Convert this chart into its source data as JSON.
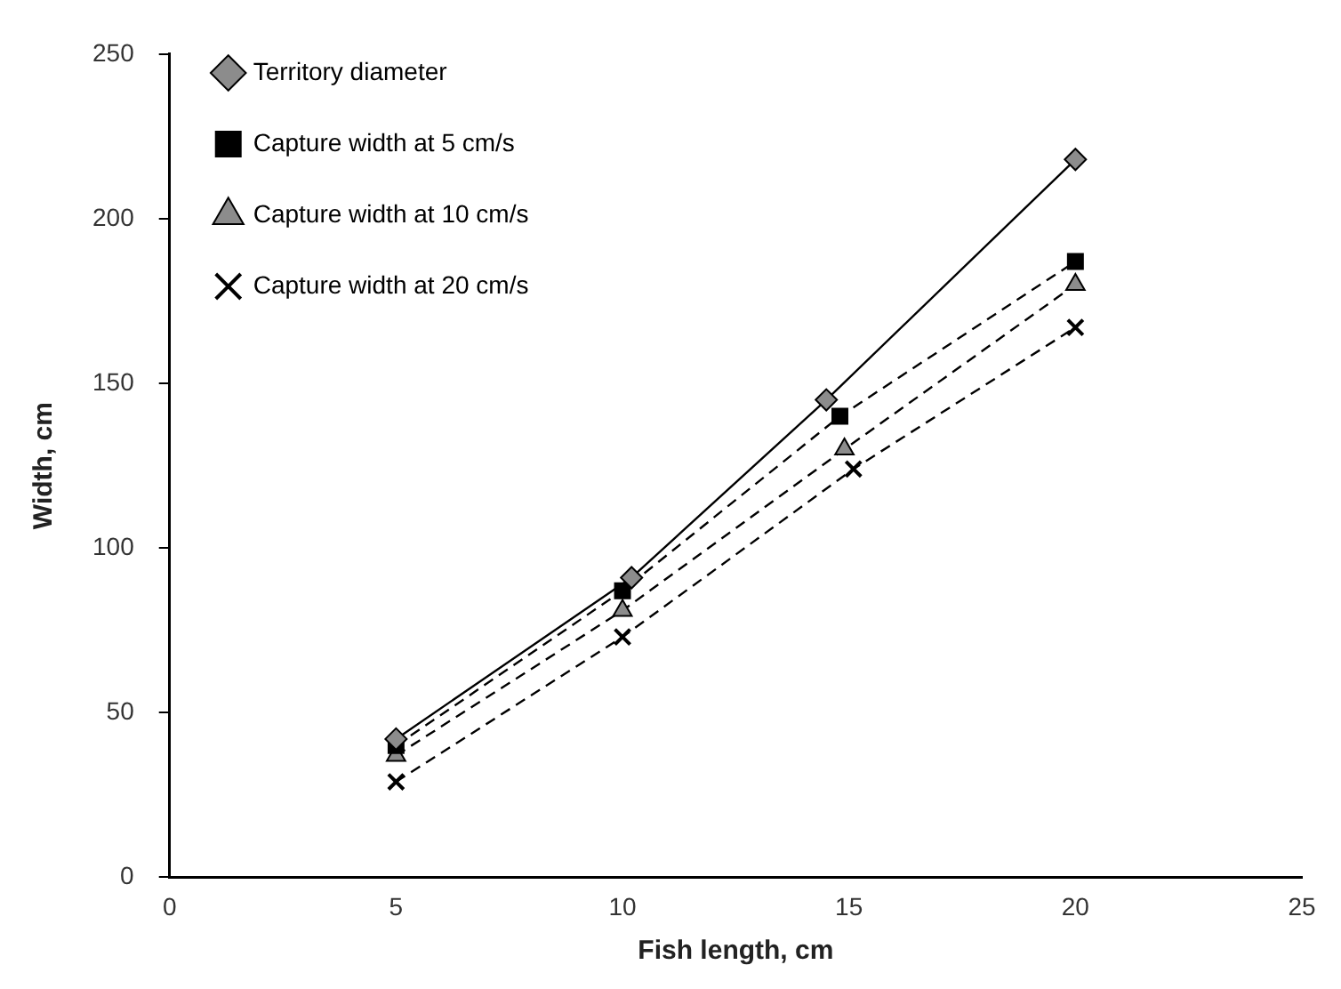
{
  "chart_data": {
    "type": "line",
    "xlabel": "Fish length, cm",
    "ylabel": "Width, cm",
    "xlim": [
      0,
      25
    ],
    "xticks": [
      0,
      5,
      10,
      15,
      20,
      25
    ],
    "ylim": [
      0,
      250
    ],
    "yticks": [
      0,
      50,
      100,
      150,
      200,
      250
    ],
    "grid": false,
    "legend": "top left",
    "series": [
      {
        "name": "Territory diameter",
        "color": "#8c8c8c",
        "marker": "diamond",
        "line_style": "solid",
        "x": [
          5,
          10.2,
          14.5,
          20
        ],
        "values": [
          42,
          91,
          145,
          218
        ]
      },
      {
        "name": "Capture width at 5 cm/s",
        "color": "#000000",
        "marker": "square",
        "line_style": "dashed",
        "x": [
          5,
          10,
          14.8,
          20
        ],
        "values": [
          40,
          87,
          140,
          187
        ]
      },
      {
        "name": "Capture width at 10 cm/s",
        "color": "#8c8c8c",
        "marker": "triangle",
        "line_style": "dashed",
        "x": [
          5,
          10,
          14.9,
          20
        ],
        "values": [
          37,
          81,
          130,
          180
        ]
      },
      {
        "name": "Capture width at 20 cm/s",
        "color": "#000000",
        "marker": "cross",
        "line_style": "dashed",
        "x": [
          5,
          10,
          15.1,
          20
        ],
        "values": [
          29,
          73,
          124,
          167
        ]
      }
    ]
  }
}
